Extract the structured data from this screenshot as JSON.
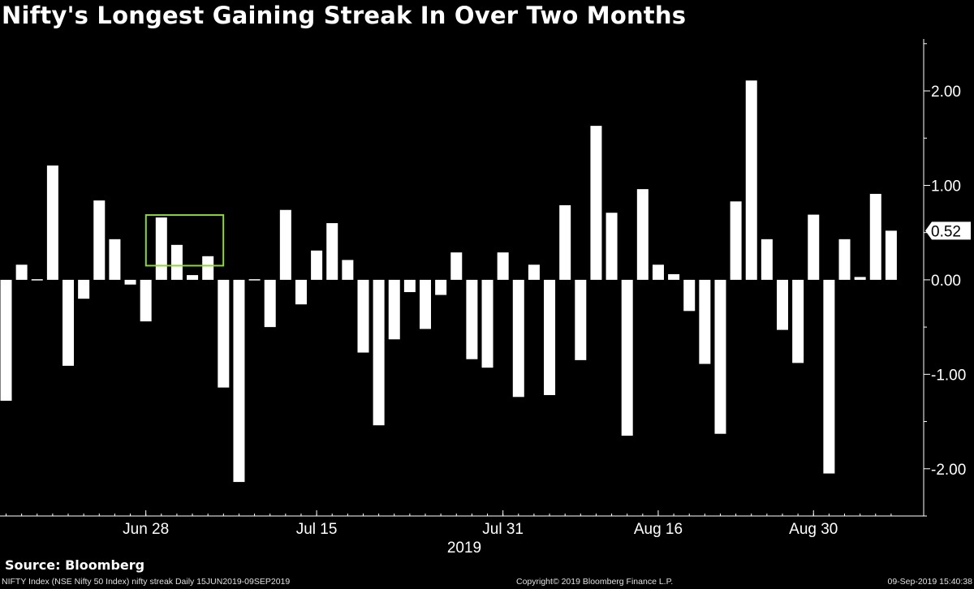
{
  "title": "Nifty's Longest Gaining Streak In Over Two Months",
  "source": "Source: Bloomberg",
  "footer": {
    "left": "NIFTY Index (NSE Nifty 50 Index) nifty streak  Daily 15JUN2019-09SEP2019",
    "center": "Copyright© 2019 Bloomberg Finance L.P.",
    "right": "09-Sep-2019 15:40:38"
  },
  "colors": {
    "background": "#000000",
    "bars": "#ffffff",
    "highlight": "#8cd63c"
  },
  "chart_data": {
    "type": "bar",
    "x_ticks": [
      "Jun 28",
      "Jul 15",
      "Jul 31",
      "Aug 16",
      "Aug 30"
    ],
    "x_tick_index": [
      9,
      20,
      32,
      42,
      52
    ],
    "x_year_label": "2019",
    "ylim": [
      -2.5,
      2.55
    ],
    "y_ticks": [
      "2.00",
      "1.00",
      "0.00",
      "-1.00",
      "-2.00"
    ],
    "y_tick_values": [
      2,
      1,
      0,
      -1,
      -2
    ],
    "last_value_label": "0.52",
    "last_value": 0.52,
    "grid": false,
    "highlight_range": [
      10,
      13
    ],
    "values": [
      -1.28,
      0.16,
      0.01,
      1.21,
      -0.91,
      -0.2,
      0.84,
      0.43,
      -0.05,
      -0.44,
      0.66,
      0.37,
      0.05,
      0.25,
      -1.14,
      -2.14,
      -0.01,
      -0.5,
      0.74,
      -0.26,
      0.31,
      0.6,
      0.21,
      -0.77,
      -1.54,
      -0.63,
      -0.13,
      -0.52,
      -0.16,
      0.29,
      -0.84,
      -0.93,
      0.29,
      -1.24,
      0.16,
      -1.22,
      0.79,
      -0.85,
      1.63,
      0.71,
      -1.65,
      0.96,
      0.16,
      0.06,
      -0.33,
      -0.89,
      -1.63,
      0.83,
      2.11,
      0.43,
      -0.53,
      -0.88,
      0.69,
      -2.05,
      0.43,
      0.03,
      0.91,
      0.52
    ]
  }
}
